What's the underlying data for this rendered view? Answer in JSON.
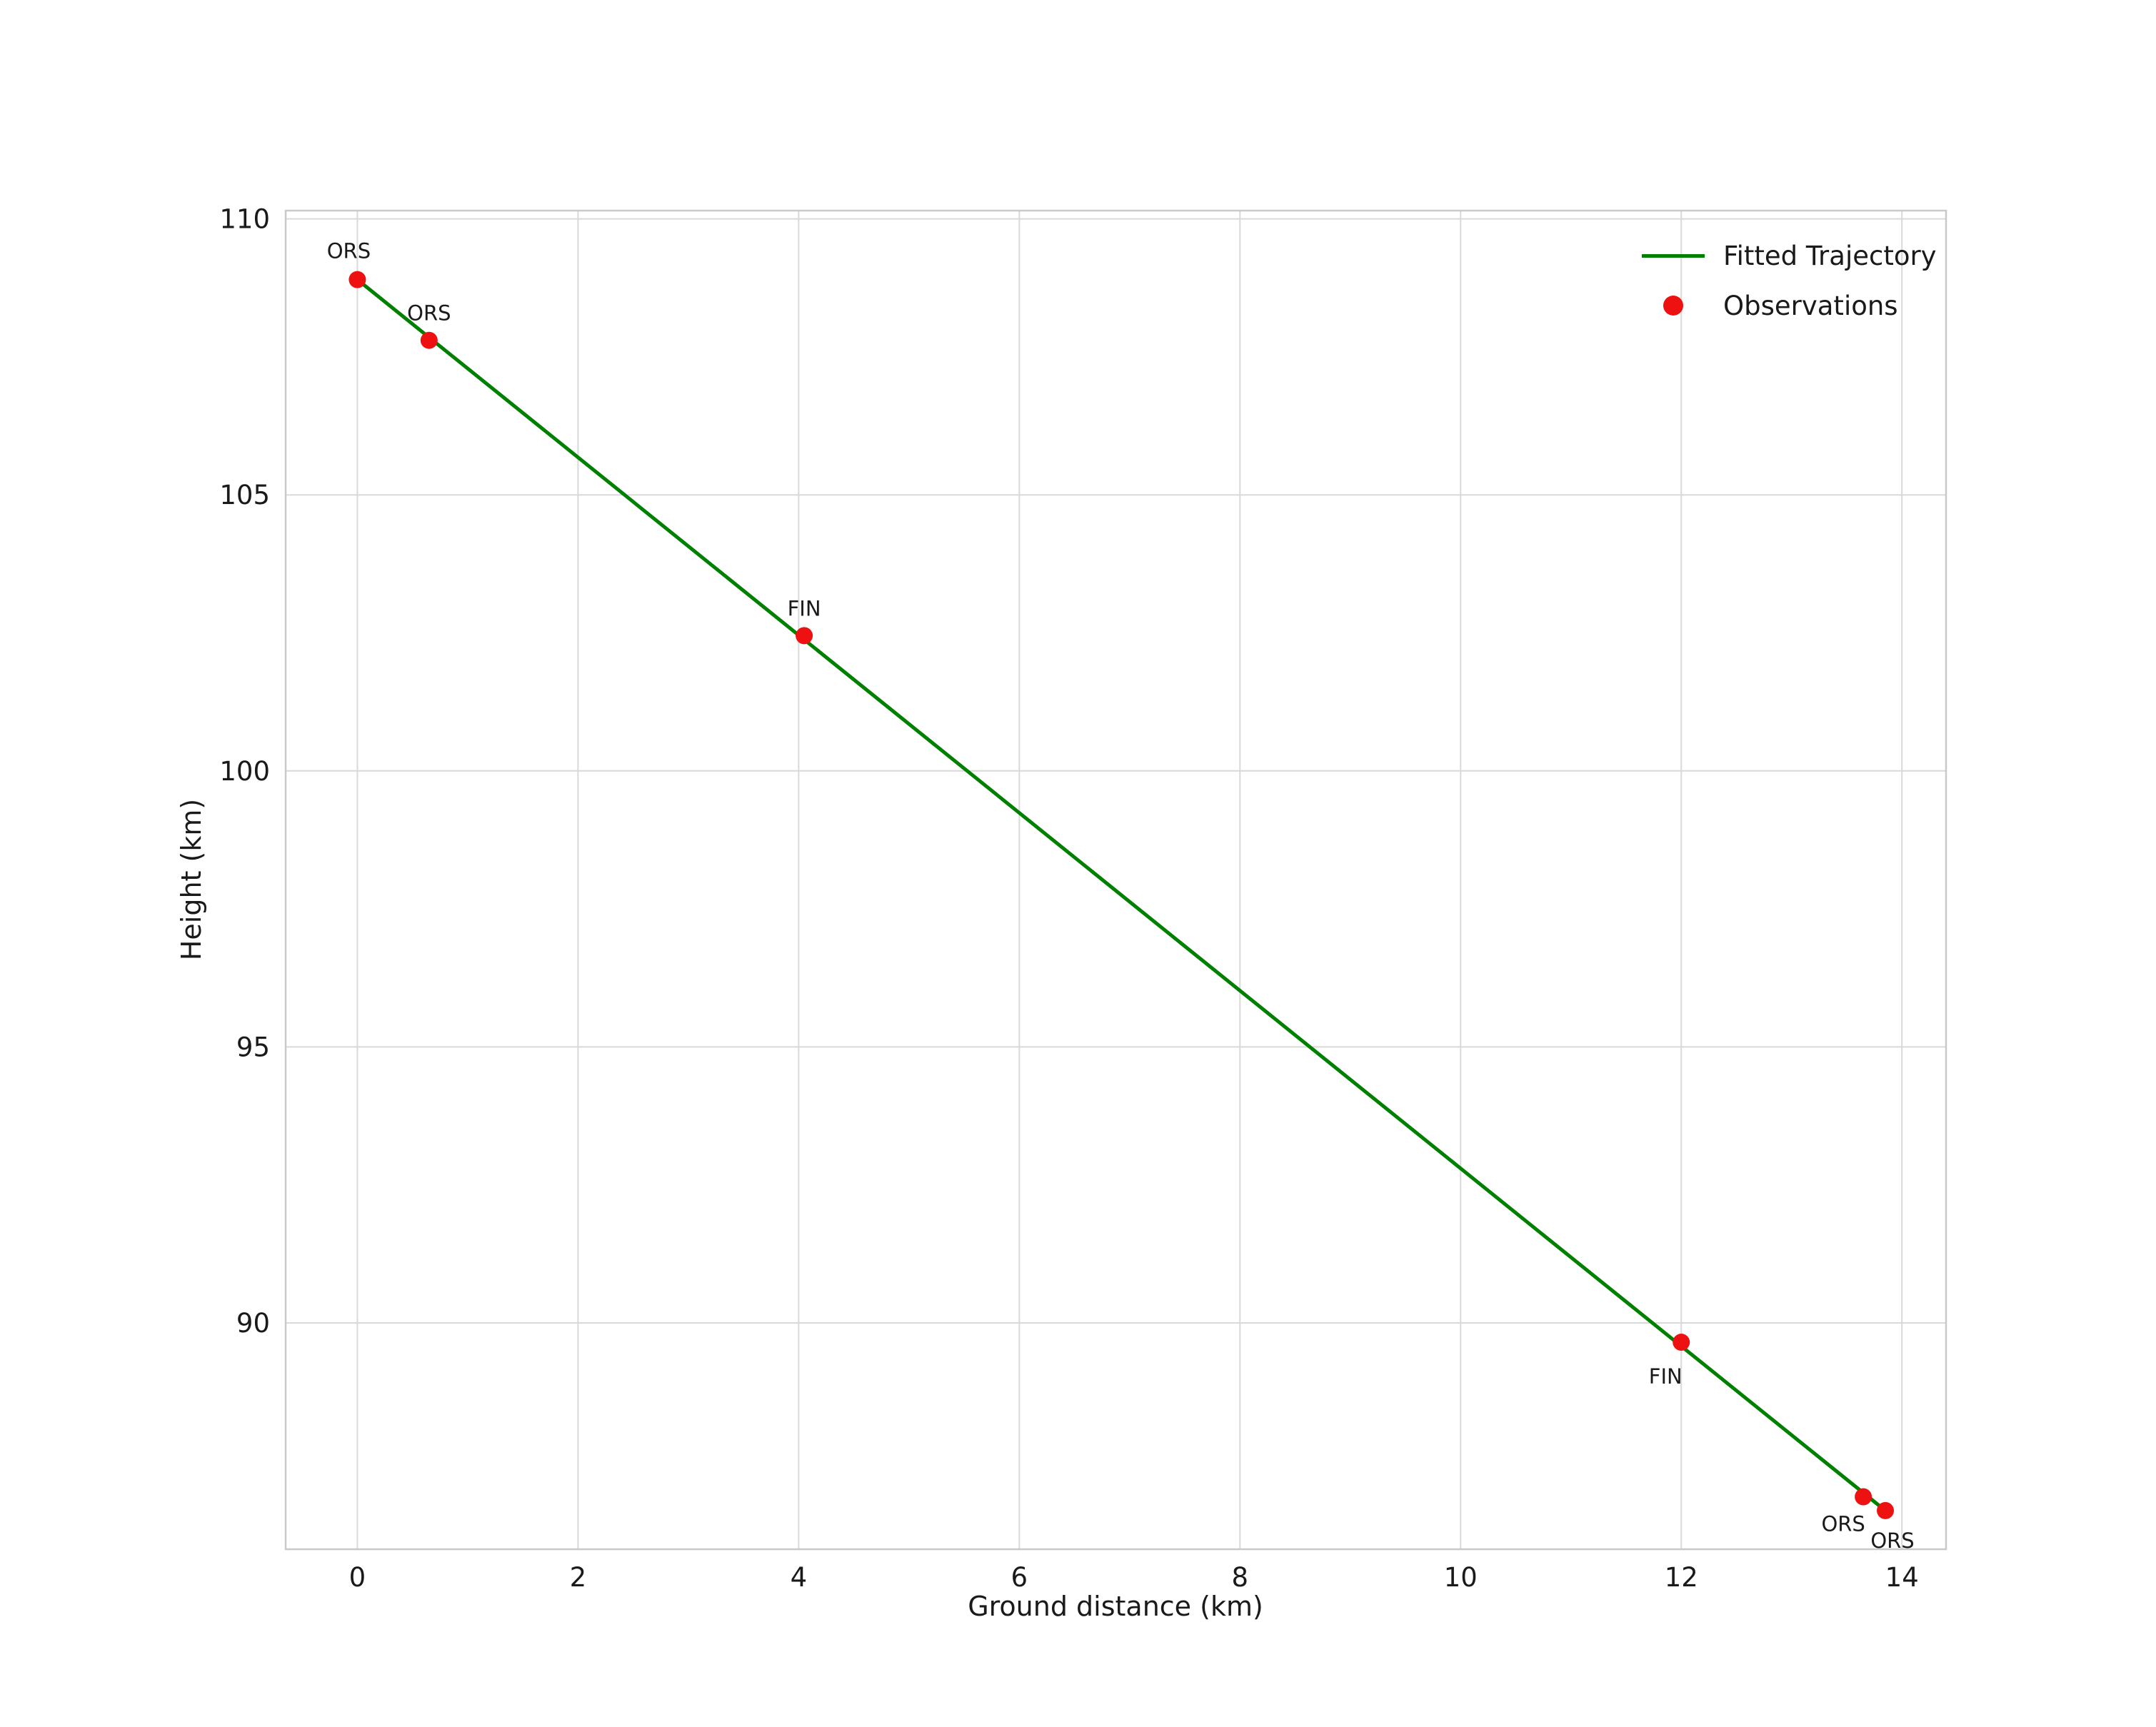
{
  "chart_data": {
    "type": "scatter",
    "title": "",
    "xlabel": "Ground distance (km)",
    "ylabel": "Height (km)",
    "xlim": [
      -0.65,
      14.4
    ],
    "ylim": [
      85.9,
      110.15
    ],
    "xticks": [
      0,
      2,
      4,
      6,
      8,
      10,
      12,
      14
    ],
    "yticks": [
      90,
      95,
      100,
      105,
      110
    ],
    "grid": true,
    "colors": {
      "line": "#008000",
      "marker": "#ee1111",
      "grid": "#d9d9d9",
      "spine": "#c9c9c9",
      "text": "#1a1a1a"
    },
    "series": [
      {
        "name": "Fitted Trajectory",
        "type": "line",
        "x": [
          0.0,
          13.85
        ],
        "y": [
          108.9,
          86.6
        ]
      },
      {
        "name": "Observations",
        "type": "scatter",
        "points": [
          {
            "label": "ORS",
            "x": 0.0,
            "y": 108.9,
            "label_dx": -12,
            "label_dy": -30
          },
          {
            "label": "ORS",
            "x": 0.65,
            "y": 107.8,
            "label_dx": 0,
            "label_dy": -28
          },
          {
            "label": "FIN",
            "x": 4.05,
            "y": 102.45,
            "label_dx": 0,
            "label_dy": -28
          },
          {
            "label": "FIN",
            "x": 12.0,
            "y": 89.65,
            "label_dx": -22,
            "label_dy": 58
          },
          {
            "label": "ORS",
            "x": 13.65,
            "y": 86.85,
            "label_dx": -28,
            "label_dy": 48
          },
          {
            "label": "ORS",
            "x": 13.85,
            "y": 86.6,
            "label_dx": 10,
            "label_dy": 52
          }
        ]
      }
    ],
    "legend": {
      "position": "upper right",
      "entries": [
        {
          "label": "Fitted Trajectory",
          "type": "line",
          "color": "#008000"
        },
        {
          "label": "Observations",
          "type": "marker",
          "color": "#ee1111"
        }
      ]
    }
  }
}
